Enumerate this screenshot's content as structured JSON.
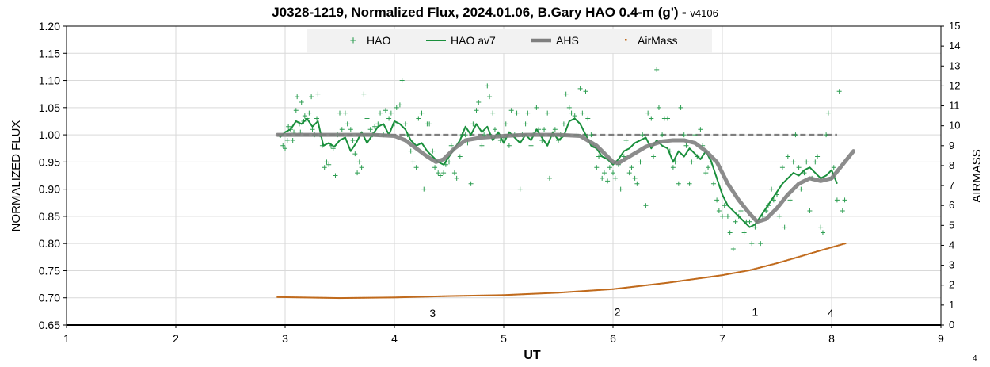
{
  "chart_data": {
    "type": "line",
    "title": "J0328-1219, Normalized Flux, 2024.01.06, B.Gary HAO 0.4-m (g')",
    "version_label": "v4106",
    "xlabel": "UT",
    "ylabel": "NORMALIZED FLUX",
    "y2label": "AIRMASS",
    "xlim": [
      1,
      9
    ],
    "ylim": [
      0.65,
      1.2
    ],
    "y2lim": [
      0,
      15
    ],
    "x_ticks": [
      "1",
      "2",
      "3",
      "4",
      "5",
      "6",
      "7",
      "8",
      "9"
    ],
    "y_ticks": [
      "0.65",
      "0.70",
      "0.75",
      "0.80",
      "0.85",
      "0.90",
      "0.95",
      "1.00",
      "1.05",
      "1.10",
      "1.15",
      "1.20"
    ],
    "y2_ticks": [
      "0",
      "1",
      "2",
      "3",
      "4",
      "5",
      "6",
      "7",
      "8",
      "9",
      "10",
      "11",
      "12",
      "13",
      "14",
      "15"
    ],
    "grid": true,
    "legend_position": "top-center",
    "legend": [
      "HAO",
      "HAO av7",
      "AHS",
      "AirMass"
    ],
    "colors": {
      "hao": "#2e9e52",
      "hao_av7": "#1a8f3c",
      "ahs": "#7f7f7f",
      "airmass": "#c06a1c",
      "baseline": "#7f7f7f"
    },
    "baseline": 1.0,
    "baseline_x": [
      2.93,
      8.05
    ],
    "annotations": [
      {
        "text": "3",
        "x": 4.35,
        "y": 0.672
      },
      {
        "text": "2",
        "x": 6.04,
        "y": 0.674
      },
      {
        "text": "1",
        "x": 7.3,
        "y": 0.674
      },
      {
        "text": "4",
        "x": 7.99,
        "y": 0.672
      }
    ],
    "series": [
      {
        "name": "HAO av7",
        "x": [
          2.95,
          3.0,
          3.05,
          3.1,
          3.15,
          3.2,
          3.25,
          3.3,
          3.35,
          3.4,
          3.45,
          3.5,
          3.55,
          3.6,
          3.65,
          3.7,
          3.75,
          3.8,
          3.85,
          3.9,
          3.95,
          4.0,
          4.05,
          4.1,
          4.15,
          4.2,
          4.25,
          4.3,
          4.35,
          4.4,
          4.45,
          4.5,
          4.55,
          4.6,
          4.65,
          4.7,
          4.75,
          4.8,
          4.85,
          4.9,
          4.95,
          5.0,
          5.05,
          5.1,
          5.15,
          5.2,
          5.25,
          5.3,
          5.35,
          5.4,
          5.45,
          5.5,
          5.55,
          5.6,
          5.65,
          5.7,
          5.75,
          5.8,
          5.85,
          5.9,
          5.95,
          6.0,
          6.05,
          6.1,
          6.15,
          6.2,
          6.25,
          6.3,
          6.35,
          6.4,
          6.45,
          6.5,
          6.55,
          6.6,
          6.65,
          6.7,
          6.75,
          6.8,
          6.85,
          6.9,
          6.95,
          7.0,
          7.05,
          7.1,
          7.15,
          7.2,
          7.25,
          7.3,
          7.35,
          7.4,
          7.45,
          7.5,
          7.55,
          7.6,
          7.65,
          7.7,
          7.75,
          7.8,
          7.85,
          7.9,
          7.95,
          8.0,
          8.05
        ],
        "values": [
          0.995,
          1.005,
          1.01,
          1.025,
          1.02,
          1.03,
          1.015,
          1.025,
          0.98,
          0.985,
          0.978,
          0.99,
          0.995,
          0.97,
          0.985,
          1.005,
          0.985,
          1.0,
          1.015,
          1.02,
          1.0,
          1.025,
          1.02,
          1.01,
          0.99,
          0.98,
          0.985,
          0.97,
          0.96,
          0.95,
          0.945,
          0.96,
          0.975,
          0.99,
          1.015,
          1.0,
          1.02,
          1.005,
          1.015,
          0.99,
          1.005,
          0.985,
          1.005,
          0.995,
          0.985,
          1.0,
          0.99,
          1.01,
          0.995,
          0.98,
          1.005,
          0.99,
          0.998,
          1.025,
          1.03,
          1.02,
          1.0,
          0.98,
          0.975,
          0.96,
          0.955,
          0.945,
          0.955,
          0.97,
          0.975,
          0.985,
          0.99,
          0.995,
          0.975,
          0.99,
          0.98,
          0.975,
          0.95,
          0.97,
          0.96,
          0.975,
          0.965,
          0.955,
          0.97,
          0.95,
          0.92,
          0.89,
          0.87,
          0.86,
          0.85,
          0.84,
          0.83,
          0.835,
          0.85,
          0.865,
          0.88,
          0.895,
          0.91,
          0.92,
          0.93,
          0.925,
          0.935,
          0.94,
          0.93,
          0.92,
          0.925,
          0.935,
          0.91
        ]
      },
      {
        "name": "AHS",
        "x": [
          2.93,
          3.2,
          3.5,
          3.8,
          4.0,
          4.1,
          4.2,
          4.3,
          4.38,
          4.45,
          4.55,
          4.65,
          4.8,
          5.0,
          5.2,
          5.5,
          5.7,
          5.85,
          5.95,
          6.0,
          6.05,
          6.15,
          6.3,
          6.45,
          6.55,
          6.65,
          6.75,
          6.85,
          6.95,
          7.05,
          7.15,
          7.25,
          7.32,
          7.4,
          7.5,
          7.6,
          7.7,
          7.8,
          7.9,
          8.0,
          8.1,
          8.2
        ],
        "values": [
          1.0,
          1.0,
          1.0,
          1.0,
          0.998,
          0.99,
          0.975,
          0.96,
          0.95,
          0.955,
          0.975,
          0.99,
          0.995,
          0.998,
          1.0,
          1.0,
          0.998,
          0.98,
          0.96,
          0.95,
          0.948,
          0.96,
          0.978,
          0.988,
          0.99,
          0.99,
          0.985,
          0.97,
          0.95,
          0.91,
          0.88,
          0.855,
          0.84,
          0.845,
          0.865,
          0.89,
          0.91,
          0.92,
          0.915,
          0.92,
          0.945,
          0.97
        ]
      },
      {
        "name": "AirMass",
        "axis": "secondary",
        "x": [
          2.93,
          3.5,
          4.0,
          4.5,
          5.0,
          5.5,
          6.0,
          6.5,
          7.0,
          7.25,
          7.5,
          7.75,
          8.0,
          8.13
        ],
        "values": [
          1.4,
          1.35,
          1.38,
          1.45,
          1.5,
          1.62,
          1.8,
          2.12,
          2.5,
          2.75,
          3.1,
          3.5,
          3.9,
          4.1
        ]
      }
    ],
    "scatter_series": {
      "name": "HAO",
      "points": [
        [
          2.98,
          0.98
        ],
        [
          3.0,
          0.975
        ],
        [
          3.02,
          0.99
        ],
        [
          3.03,
          1.015
        ],
        [
          3.05,
          1.01
        ],
        [
          3.07,
          0.99
        ],
        [
          3.08,
          1.005
        ],
        [
          3.1,
          1.045
        ],
        [
          3.11,
          1.07
        ],
        [
          3.13,
          1.02
        ],
        [
          3.14,
          1.005
        ],
        [
          3.15,
          1.06
        ],
        [
          3.17,
          1.025
        ],
        [
          3.18,
          1.035
        ],
        [
          3.2,
          1.03
        ],
        [
          3.22,
          1.04
        ],
        [
          3.24,
          1.07
        ],
        [
          3.25,
          1.01
        ],
        [
          3.27,
          1.0
        ],
        [
          3.29,
          1.03
        ],
        [
          3.3,
          1.075
        ],
        [
          3.32,
          1.0
        ],
        [
          3.34,
          0.98
        ],
        [
          3.36,
          0.94
        ],
        [
          3.38,
          0.95
        ],
        [
          3.4,
          0.945
        ],
        [
          3.42,
          0.98
        ],
        [
          3.44,
          0.975
        ],
        [
          3.46,
          0.925
        ],
        [
          3.48,
          1.0
        ],
        [
          3.5,
          1.04
        ],
        [
          3.52,
          1.01
        ],
        [
          3.55,
          1.04
        ],
        [
          3.57,
          1.02
        ],
        [
          3.6,
          1.01
        ],
        [
          3.62,
          0.99
        ],
        [
          3.64,
          0.965
        ],
        [
          3.66,
          0.93
        ],
        [
          3.68,
          0.95
        ],
        [
          3.7,
          0.94
        ],
        [
          3.72,
          1.075
        ],
        [
          3.75,
          1.03
        ],
        [
          3.78,
          1.01
        ],
        [
          3.8,
          1.0
        ],
        [
          3.82,
          1.015
        ],
        [
          3.85,
          1.02
        ],
        [
          3.87,
          1.04
        ],
        [
          3.9,
          1.0
        ],
        [
          3.92,
          1.045
        ],
        [
          3.95,
          1.03
        ],
        [
          3.97,
          1.04
        ],
        [
          4.0,
          1.02
        ],
        [
          4.02,
          1.05
        ],
        [
          4.05,
          1.055
        ],
        [
          4.07,
          1.1
        ],
        [
          4.1,
          1.02
        ],
        [
          4.12,
          1.0
        ],
        [
          4.15,
          0.97
        ],
        [
          4.17,
          0.95
        ],
        [
          4.2,
          0.94
        ],
        [
          4.22,
          1.03
        ],
        [
          4.25,
          1.04
        ],
        [
          4.27,
          0.9
        ],
        [
          4.3,
          1.02
        ],
        [
          4.32,
          1.02
        ],
        [
          4.35,
          0.97
        ],
        [
          4.37,
          0.94
        ],
        [
          4.4,
          0.93
        ],
        [
          4.42,
          0.925
        ],
        [
          4.45,
          0.93
        ],
        [
          4.47,
          0.945
        ],
        [
          4.5,
          0.95
        ],
        [
          4.52,
          0.98
        ],
        [
          4.55,
          0.93
        ],
        [
          4.57,
          0.92
        ],
        [
          4.6,
          0.96
        ],
        [
          4.62,
          1.0
        ],
        [
          4.65,
          1.0
        ],
        [
          4.67,
          0.985
        ],
        [
          4.7,
          0.91
        ],
        [
          4.72,
          1.02
        ],
        [
          4.75,
          1.045
        ],
        [
          4.77,
          1.06
        ],
        [
          4.8,
          0.98
        ],
        [
          4.82,
          1.0
        ],
        [
          4.85,
          1.09
        ],
        [
          4.87,
          1.07
        ],
        [
          4.9,
          1.04
        ],
        [
          4.92,
          1.01
        ],
        [
          4.95,
          1.0
        ],
        [
          4.97,
          0.99
        ],
        [
          5.0,
          0.995
        ],
        [
          5.02,
          1.02
        ],
        [
          5.05,
          0.98
        ],
        [
          5.07,
          1.045
        ],
        [
          5.1,
          1.0
        ],
        [
          5.12,
          1.04
        ],
        [
          5.15,
          0.9
        ],
        [
          5.17,
          1.0
        ],
        [
          5.2,
          1.02
        ],
        [
          5.22,
          1.04
        ],
        [
          5.25,
          0.98
        ],
        [
          5.27,
          1.0
        ],
        [
          5.3,
          1.05
        ],
        [
          5.32,
          1.01
        ],
        [
          5.35,
          0.99
        ],
        [
          5.37,
          1.01
        ],
        [
          5.4,
          1.04
        ],
        [
          5.42,
          0.92
        ],
        [
          5.45,
          1.0
        ],
        [
          5.47,
          1.01
        ],
        [
          5.5,
          0.99
        ],
        [
          5.52,
          1.0
        ],
        [
          5.55,
          1.02
        ],
        [
          5.57,
          1.075
        ],
        [
          5.6,
          1.05
        ],
        [
          5.62,
          1.04
        ],
        [
          5.65,
          1.035
        ],
        [
          5.67,
          1.0
        ],
        [
          5.7,
          1.085
        ],
        [
          5.72,
          1.04
        ],
        [
          5.75,
          1.08
        ],
        [
          5.77,
          1.03
        ],
        [
          5.8,
          1.0
        ],
        [
          5.82,
          0.98
        ],
        [
          5.85,
          0.94
        ],
        [
          5.87,
          0.96
        ],
        [
          5.9,
          0.92
        ],
        [
          5.92,
          0.93
        ],
        [
          5.95,
          0.915
        ],
        [
          5.97,
          0.94
        ],
        [
          6.0,
          0.93
        ],
        [
          6.02,
          0.92
        ],
        [
          6.05,
          0.945
        ],
        [
          6.07,
          0.9
        ],
        [
          6.1,
          0.96
        ],
        [
          6.12,
          0.99
        ],
        [
          6.15,
          0.93
        ],
        [
          6.17,
          0.94
        ],
        [
          6.2,
          0.92
        ],
        [
          6.22,
          0.91
        ],
        [
          6.25,
          0.95
        ],
        [
          6.27,
          1.0
        ],
        [
          6.3,
          0.87
        ],
        [
          6.32,
          1.04
        ],
        [
          6.35,
          1.03
        ],
        [
          6.37,
          0.96
        ],
        [
          6.4,
          1.12
        ],
        [
          6.42,
          1.05
        ],
        [
          6.45,
          1.0
        ],
        [
          6.47,
          1.03
        ],
        [
          6.5,
          1.03
        ],
        [
          6.52,
          0.97
        ],
        [
          6.55,
          0.94
        ],
        [
          6.57,
          0.95
        ],
        [
          6.6,
          0.91
        ],
        [
          6.62,
          1.05
        ],
        [
          6.65,
          1.0
        ],
        [
          6.67,
          0.98
        ],
        [
          6.7,
          0.91
        ],
        [
          6.72,
          0.95
        ],
        [
          6.75,
          1.0
        ],
        [
          6.77,
          0.96
        ],
        [
          6.8,
          1.01
        ],
        [
          6.82,
          0.98
        ],
        [
          6.85,
          0.93
        ],
        [
          6.87,
          0.94
        ],
        [
          6.9,
          0.95
        ],
        [
          6.92,
          0.91
        ],
        [
          6.95,
          0.88
        ],
        [
          6.97,
          0.86
        ],
        [
          7.0,
          0.85
        ],
        [
          7.02,
          0.87
        ],
        [
          7.05,
          0.85
        ],
        [
          7.07,
          0.82
        ],
        [
          7.1,
          0.79
        ],
        [
          7.12,
          0.84
        ],
        [
          7.15,
          0.85
        ],
        [
          7.17,
          0.86
        ],
        [
          7.2,
          0.82
        ],
        [
          7.22,
          0.84
        ],
        [
          7.25,
          0.84
        ],
        [
          7.27,
          0.8
        ],
        [
          7.3,
          0.83
        ],
        [
          7.32,
          0.84
        ],
        [
          7.35,
          0.8
        ],
        [
          7.37,
          0.85
        ],
        [
          7.4,
          0.86
        ],
        [
          7.42,
          0.87
        ],
        [
          7.45,
          0.9
        ],
        [
          7.47,
          0.88
        ],
        [
          7.5,
          0.89
        ],
        [
          7.52,
          0.85
        ],
        [
          7.55,
          0.94
        ],
        [
          7.57,
          0.83
        ],
        [
          7.6,
          0.96
        ],
        [
          7.62,
          0.88
        ],
        [
          7.65,
          0.95
        ],
        [
          7.67,
          1.0
        ],
        [
          7.7,
          0.94
        ],
        [
          7.72,
          0.9
        ],
        [
          7.75,
          0.93
        ],
        [
          7.77,
          0.95
        ],
        [
          7.8,
          0.86
        ],
        [
          7.82,
          0.92
        ],
        [
          7.85,
          0.95
        ],
        [
          7.87,
          0.96
        ],
        [
          7.9,
          0.83
        ],
        [
          7.92,
          0.82
        ],
        [
          7.95,
          1.0
        ],
        [
          7.97,
          1.04
        ],
        [
          8.0,
          0.92
        ],
        [
          8.02,
          0.94
        ],
        [
          8.05,
          0.88
        ],
        [
          8.07,
          1.08
        ],
        [
          8.1,
          0.86
        ],
        [
          8.12,
          0.88
        ]
      ]
    }
  },
  "page_number": "4"
}
